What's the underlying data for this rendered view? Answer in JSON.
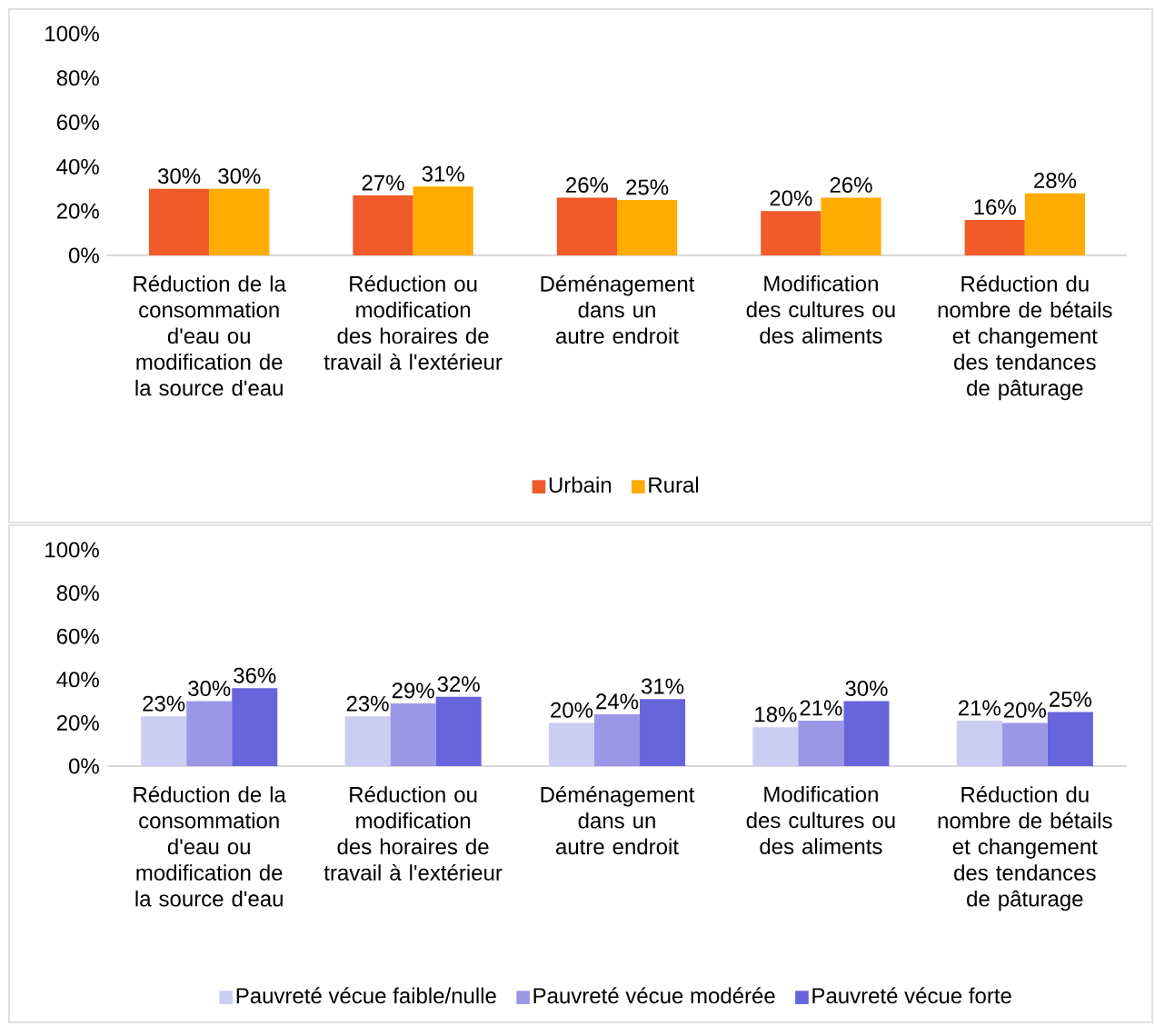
{
  "chart_data": [
    {
      "type": "bar",
      "categories": [
        "Réduction de la consommation d'eau ou modification de la source d'eau",
        "Réduction ou modification des horaires de travail à l'extérieur",
        "Déménagement dans un autre endroit",
        "Modification des cultures ou des aliments",
        "Réduction du nombre de bétails et changement des tendances de pâturage"
      ],
      "series": [
        {
          "name": "Urbain",
          "color": "#f15a29",
          "values": [
            30,
            27,
            26,
            20,
            16
          ],
          "value_labels": [
            "30%",
            "27%",
            "26%",
            "20%",
            "16%"
          ]
        },
        {
          "name": "Rural",
          "color": "#ffab00",
          "values": [
            30,
            31,
            25,
            26,
            28
          ],
          "value_labels": [
            "30%",
            "31%",
            "25%",
            "26%",
            "28%"
          ]
        }
      ],
      "ylim": [
        0,
        100
      ],
      "yticks": [
        {
          "value": 0,
          "label": "0%"
        },
        {
          "value": 20,
          "label": "20%"
        },
        {
          "value": 40,
          "label": "40%"
        },
        {
          "value": 60,
          "label": "60%"
        },
        {
          "value": 80,
          "label": "80%"
        },
        {
          "value": 100,
          "label": "100%"
        }
      ],
      "grid": false,
      "legend": "bottom"
    },
    {
      "type": "bar",
      "categories": [
        "Réduction de la consommation d'eau ou modification de la source d'eau",
        "Réduction ou modification des horaires de travail à l'extérieur",
        "Déménagement dans un autre endroit",
        "Modification des cultures ou des aliments",
        "Réduction du nombre de bétails et changement des tendances de pâturage"
      ],
      "series": [
        {
          "name": "Pauvreté vécue faible/nulle",
          "color": "#cccdf2",
          "values": [
            23,
            23,
            20,
            18,
            21
          ],
          "value_labels": [
            "23%",
            "23%",
            "20%",
            "18%",
            "21%"
          ]
        },
        {
          "name": "Pauvreté vécue modérée",
          "color": "#9a98e6",
          "values": [
            30,
            29,
            24,
            21,
            20
          ],
          "value_labels": [
            "30%",
            "29%",
            "24%",
            "21%",
            "20%"
          ]
        },
        {
          "name": "Pauvreté vécue forte",
          "color": "#6764dc",
          "values": [
            36,
            32,
            31,
            30,
            25
          ],
          "value_labels": [
            "36%",
            "32%",
            "31%",
            "30%",
            "25%"
          ]
        }
      ],
      "ylim": [
        0,
        100
      ],
      "yticks": [
        {
          "value": 0,
          "label": "0%"
        },
        {
          "value": 20,
          "label": "20%"
        },
        {
          "value": 40,
          "label": "40%"
        },
        {
          "value": 60,
          "label": "60%"
        },
        {
          "value": 80,
          "label": "80%"
        },
        {
          "value": 100,
          "label": "100%"
        }
      ],
      "grid": false,
      "legend": "bottom"
    }
  ]
}
